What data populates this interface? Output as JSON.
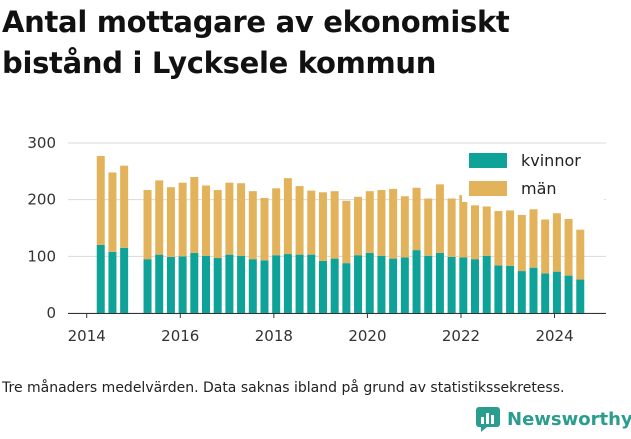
{
  "title_lines": [
    "Antal mottagare av ekonomiskt",
    "bistånd i Lycksele kommun"
  ],
  "caption": "Tre månaders medelvärden. Data saknas ibland på grund av statistikssekretess.",
  "brand": {
    "name": "Newsworthy",
    "color": "#2a9d8f",
    "icon": "newsworthy-logo-icon"
  },
  "colors": {
    "kvinnor": "#0fa298",
    "man": "#e2b35a",
    "grid": "#d9d9d9",
    "axis": "#333333"
  },
  "chart_data": {
    "type": "bar",
    "stacked": true,
    "x": [
      "2014-Q2",
      "2014-Q3",
      "2014-Q4",
      "2015-Q1",
      "2015-Q2",
      "2015-Q3",
      "2015-Q4",
      "2016-Q1",
      "2016-Q2",
      "2016-Q3",
      "2016-Q4",
      "2017-Q1",
      "2017-Q2",
      "2017-Q3",
      "2017-Q4",
      "2018-Q1",
      "2018-Q2",
      "2018-Q3",
      "2018-Q4",
      "2019-Q1",
      "2019-Q2",
      "2019-Q3",
      "2019-Q4",
      "2020-Q1",
      "2020-Q2",
      "2020-Q3",
      "2020-Q4",
      "2021-Q1",
      "2021-Q2",
      "2021-Q3",
      "2021-Q4",
      "2022-Q1",
      "2022-Q2",
      "2022-Q3",
      "2022-Q4",
      "2023-Q1",
      "2023-Q2",
      "2023-Q3",
      "2023-Q4",
      "2024-Q1",
      "2024-Q2",
      "2024-Q3"
    ],
    "x_numeric": [
      2014.3,
      2014.55,
      2014.8,
      2015.05,
      2015.3,
      2015.55,
      2015.8,
      2016.05,
      2016.3,
      2016.55,
      2016.8,
      2017.05,
      2017.3,
      2017.55,
      2017.8,
      2018.05,
      2018.3,
      2018.55,
      2018.8,
      2019.05,
      2019.3,
      2019.55,
      2019.8,
      2020.05,
      2020.3,
      2020.55,
      2020.8,
      2021.05,
      2021.3,
      2021.55,
      2021.8,
      2022.05,
      2022.3,
      2022.55,
      2022.8,
      2023.05,
      2023.3,
      2023.55,
      2023.8,
      2024.05,
      2024.3,
      2024.55
    ],
    "series": [
      {
        "name": "kvinnor",
        "color": "#0fa298",
        "values": [
          120,
          108,
          115,
          null,
          95,
          103,
          99,
          100,
          106,
          101,
          97,
          103,
          101,
          95,
          93,
          102,
          104,
          103,
          103,
          92,
          96,
          88,
          102,
          106,
          101,
          96,
          98,
          111,
          101,
          106,
          99,
          98,
          95,
          101,
          84,
          83,
          74,
          80,
          70,
          73,
          66,
          59
        ]
      },
      {
        "name": "män",
        "color": "#e2b35a",
        "values": [
          157,
          140,
          145,
          null,
          122,
          131,
          123,
          130,
          134,
          124,
          120,
          127,
          128,
          120,
          110,
          118,
          134,
          121,
          113,
          121,
          119,
          110,
          103,
          109,
          116,
          123,
          108,
          110,
          101,
          121,
          103,
          110,
          95,
          87,
          96,
          98,
          99,
          103,
          95,
          103,
          100,
          88
        ]
      }
    ],
    "xlim": [
      2013.6,
      2025.1
    ],
    "x_ticks": [
      "2014",
      "2016",
      "2018",
      "2020",
      "2022",
      "2024"
    ],
    "x_tick_values": [
      2014,
      2016,
      2018,
      2020,
      2022,
      2024
    ],
    "y_ticks": [
      "0",
      "100",
      "200",
      "300"
    ],
    "y_tick_values": [
      0,
      100,
      200,
      300
    ],
    "ylim": [
      0,
      300
    ],
    "grid": true,
    "legend_position": "top-right"
  }
}
